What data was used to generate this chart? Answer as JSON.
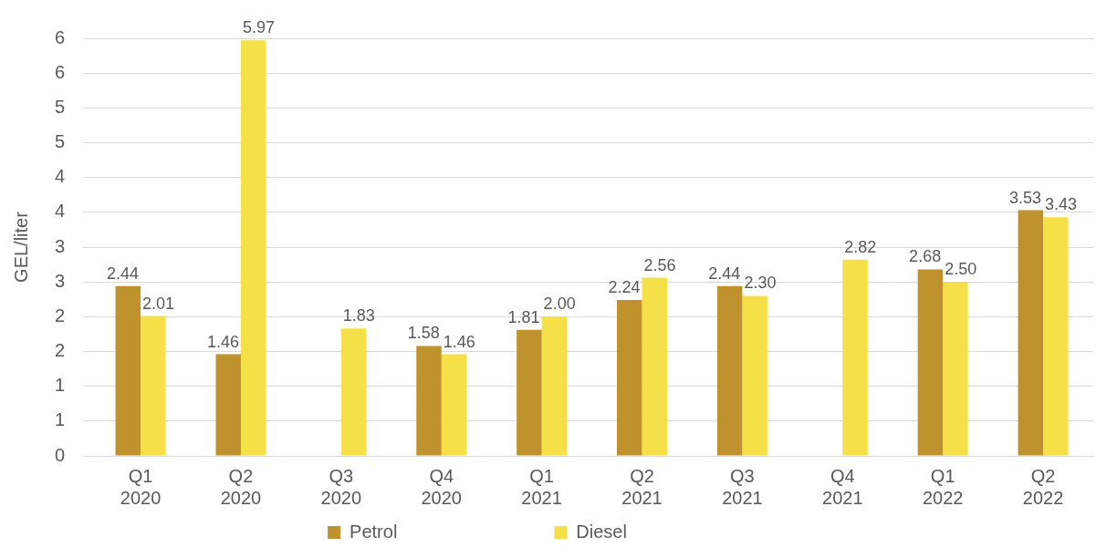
{
  "chart_data": {
    "type": "bar",
    "ylabel": "GEL/liter",
    "categories": [
      "Q1 2020",
      "Q2 2020",
      "Q3 2020",
      "Q4 2020",
      "Q1 2021",
      "Q2 2021",
      "Q3 2021",
      "Q4 2021",
      "Q1 2022",
      "Q2 2022"
    ],
    "series": [
      {
        "name": "Petrol",
        "color": "#c0922e",
        "values": [
          2.44,
          1.46,
          null,
          1.58,
          1.81,
          2.24,
          2.44,
          null,
          2.68,
          3.53
        ],
        "value_labels": [
          "2.44",
          "1.46",
          null,
          "1.58",
          "1.81",
          "2.24",
          "2.44",
          null,
          "2.68",
          "3.53"
        ]
      },
      {
        "name": "Diesel",
        "color": "#f5e04a",
        "values": [
          2.01,
          5.97,
          1.83,
          1.46,
          2.0,
          2.56,
          2.3,
          2.82,
          2.5,
          3.43
        ],
        "value_labels": [
          "2.01",
          "5.97",
          "1.83",
          "1.46",
          "2.00",
          "2.56",
          "2.30",
          "2.82",
          "2.50",
          "3.43"
        ]
      }
    ],
    "ylim": [
      0,
      6
    ],
    "yticks": [
      0,
      {
        "value": 0.5,
        "label": "1"
      },
      1,
      {
        "value": 1.5,
        "label": "2"
      },
      2,
      {
        "value": 2.5,
        "label": "3"
      },
      3,
      {
        "value": 3.5,
        "label": "4"
      },
      4,
      {
        "value": 4.5,
        "label": "5"
      },
      5,
      {
        "value": 5.5,
        "label": "6"
      },
      6
    ],
    "grid": "y",
    "legend": "bottom"
  }
}
